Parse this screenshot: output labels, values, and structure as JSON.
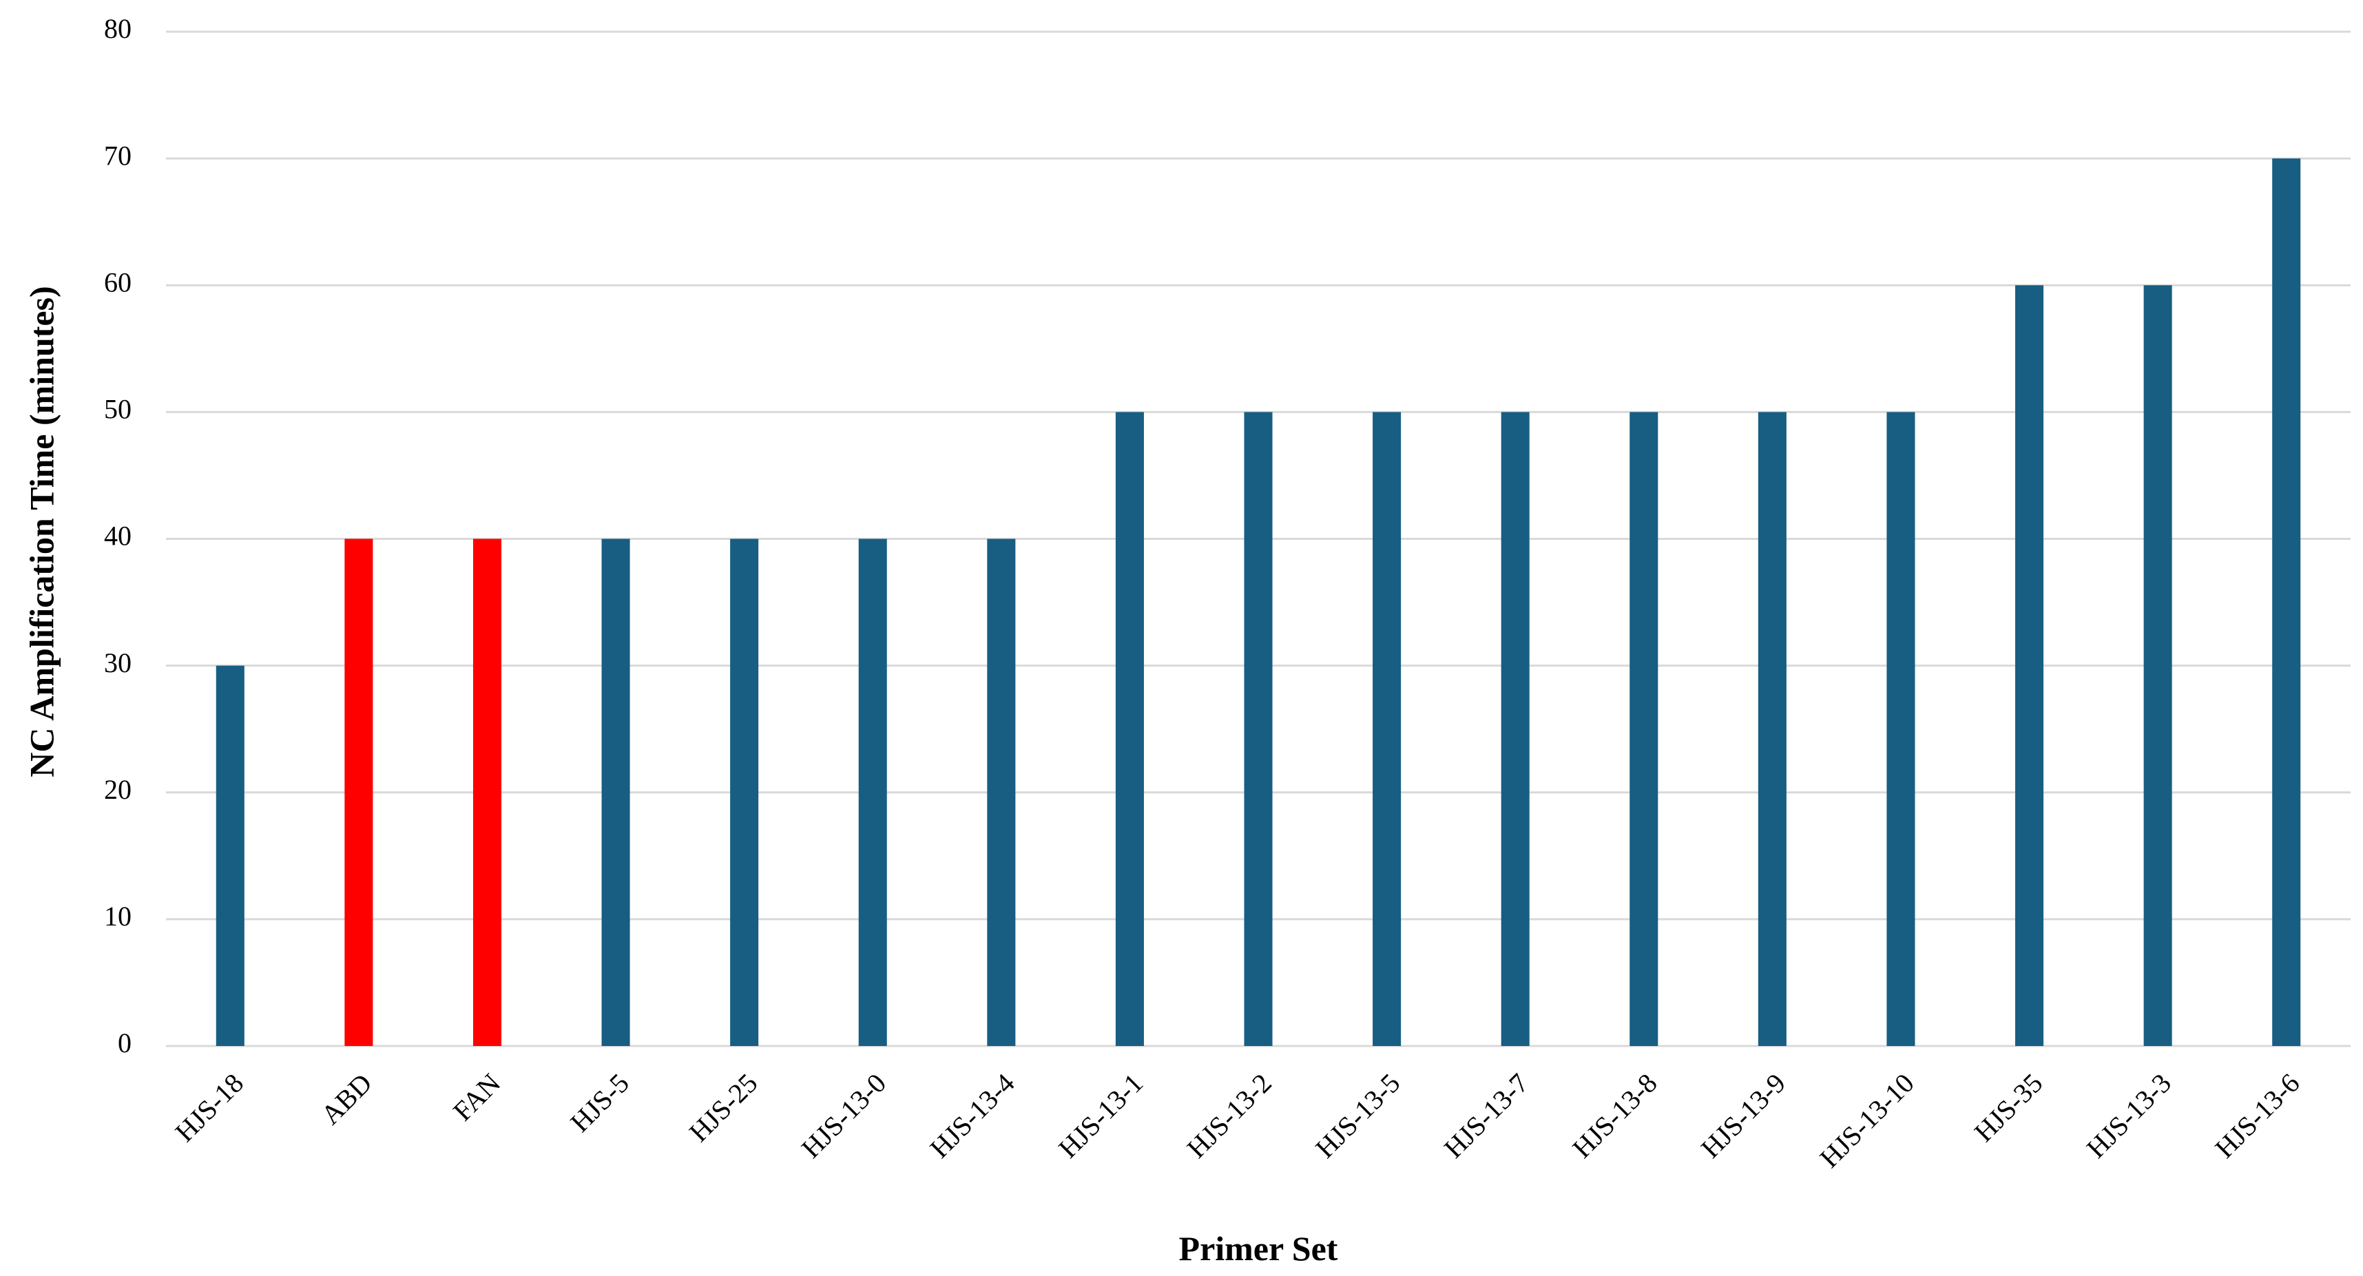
{
  "chart_data": {
    "type": "bar",
    "x_label": "Primer Set",
    "y_label": "NC Amplification Time (minutes)",
    "categories": [
      "HJS-18",
      "ABD",
      "FAN",
      "HJS-5",
      "HJS-25",
      "HJS-13-0",
      "HJS-13-4",
      "HJS-13-1",
      "HJS-13-2",
      "HJS-13-5",
      "HJS-13-7",
      "HJS-13-8",
      "HJS-13-9",
      "HJS-13-10",
      "HJS-35",
      "HJS-13-3",
      "HJS-13-6"
    ],
    "values": [
      30,
      40,
      40,
      40,
      40,
      40,
      40,
      50,
      50,
      50,
      50,
      50,
      50,
      50,
      60,
      60,
      70
    ],
    "colors": [
      "#175e82",
      "#ff0000",
      "#ff0000",
      "#175e82",
      "#175e82",
      "#175e82",
      "#175e82",
      "#175e82",
      "#175e82",
      "#175e82",
      "#175e82",
      "#175e82",
      "#175e82",
      "#175e82",
      "#175e82",
      "#175e82",
      "#175e82"
    ],
    "ylim": [
      0,
      80
    ],
    "yticks": [
      0,
      10,
      20,
      30,
      40,
      50,
      60,
      70,
      80
    ],
    "grid": true
  }
}
